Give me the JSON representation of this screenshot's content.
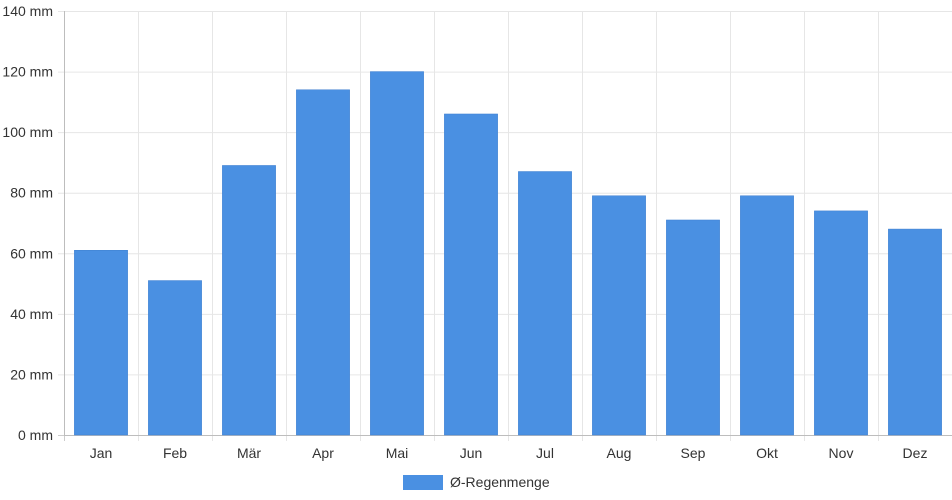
{
  "chart_data": {
    "type": "bar",
    "categories": [
      "Jan",
      "Feb",
      "Mär",
      "Apr",
      "Mai",
      "Jun",
      "Jul",
      "Aug",
      "Sep",
      "Okt",
      "Nov",
      "Dez"
    ],
    "series": [
      {
        "name": "Ø-Regenmenge",
        "color": "#4a90e2",
        "values": [
          61,
          51,
          89,
          114,
          120,
          106,
          87,
          79,
          71,
          79,
          74,
          68
        ]
      }
    ],
    "ylim": [
      0,
      140
    ],
    "yticks": [
      0,
      20,
      40,
      60,
      80,
      100,
      120,
      140
    ],
    "ytick_labels": [
      "0 mm",
      "20 mm",
      "40 mm",
      "60 mm",
      "80 mm",
      "100 mm",
      "120 mm",
      "140 mm"
    ],
    "grid": true,
    "legend_position": "bottom-center"
  }
}
